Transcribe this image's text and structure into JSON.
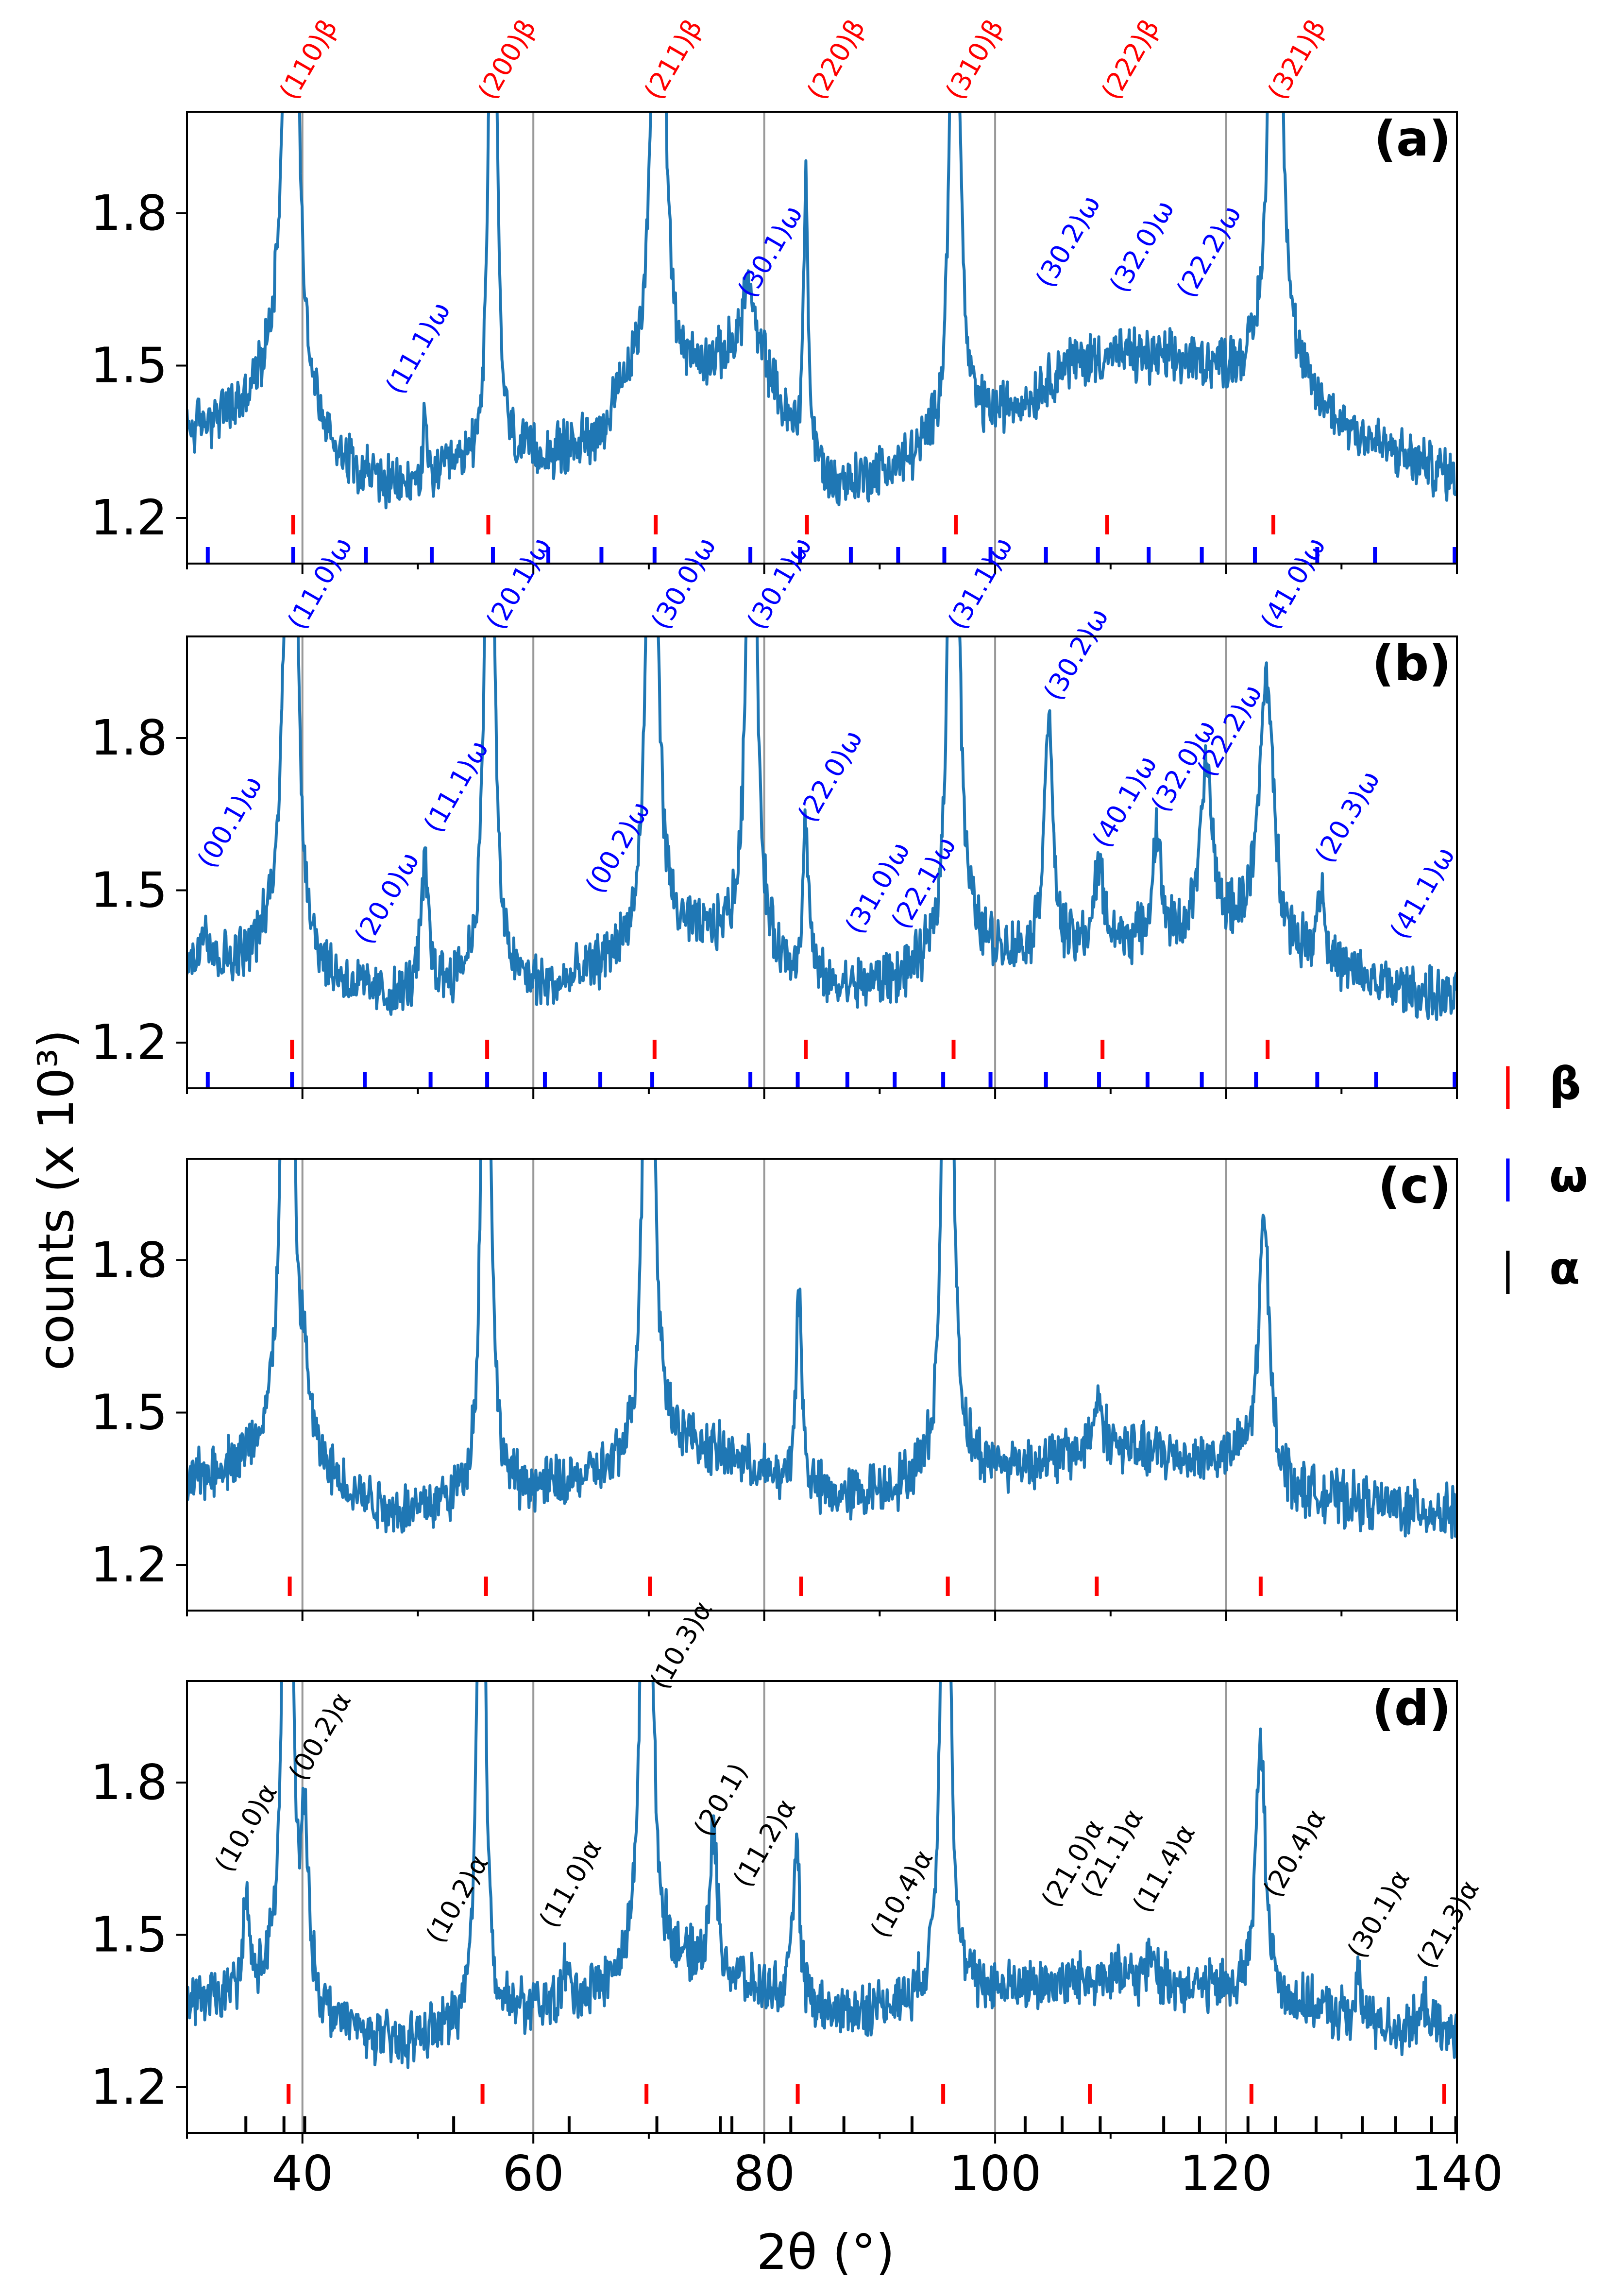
{
  "colors": {
    "trace": "#1f77b4",
    "beta": "#ff0000",
    "omega": "#0000ff",
    "alpha": "#000000",
    "gridline": "#999999"
  },
  "legend": {
    "entries": [
      {
        "symbol": "|",
        "label": "β",
        "phase": "beta"
      },
      {
        "symbol": "|",
        "label": "ω",
        "phase": "omega"
      },
      {
        "symbol": "|",
        "label": "α",
        "phase": "alpha"
      }
    ]
  },
  "chart_data": {
    "type": "line",
    "ylabel": "counts (x 10³)",
    "xlabel": "2θ (°)",
    "xlim": [
      30,
      140
    ],
    "xticks": [
      40,
      60,
      80,
      100,
      120,
      140
    ],
    "ylim": [
      1.11,
      2.0
    ],
    "yticks": [
      1.2,
      1.5,
      1.8
    ],
    "vlines": [
      40,
      60,
      80,
      100,
      120
    ],
    "panels": [
      {
        "label": "(a)",
        "baseline": [
          [
            30,
            1.37
          ],
          [
            35,
            1.41
          ],
          [
            38,
            1.48
          ],
          [
            42,
            1.33
          ],
          [
            48,
            1.25
          ],
          [
            55,
            1.3
          ],
          [
            62,
            1.32
          ],
          [
            66,
            1.36
          ],
          [
            68,
            1.44
          ],
          [
            72,
            1.46
          ],
          [
            76,
            1.5
          ],
          [
            78,
            1.53
          ],
          [
            80,
            1.5
          ],
          [
            82,
            1.38
          ],
          [
            86,
            1.26
          ],
          [
            92,
            1.3
          ],
          [
            95,
            1.34
          ],
          [
            98,
            1.38
          ],
          [
            103,
            1.43
          ],
          [
            106,
            1.5
          ],
          [
            110,
            1.52
          ],
          [
            114,
            1.51
          ],
          [
            118,
            1.5
          ],
          [
            121,
            1.48
          ],
          [
            126,
            1.44
          ],
          [
            130,
            1.38
          ],
          [
            135,
            1.32
          ],
          [
            140,
            1.28
          ]
        ],
        "peaks": [
          [
            39.0,
            1.8,
            0.5
          ],
          [
            56.5,
            1.8,
            0.3
          ],
          [
            70.8,
            1.8,
            0.45
          ],
          [
            96.5,
            1.8,
            0.35
          ],
          [
            124.3,
            1.4,
            0.55
          ],
          [
            83.6,
            0.55,
            0.22
          ],
          [
            78.6,
            0.14,
            0.5
          ],
          [
            50.6,
            0.1,
            0.2
          ]
        ],
        "beta_ticks": [
          39.2,
          56.1,
          70.6,
          83.7,
          96.6,
          109.7,
          124.1
        ],
        "omega_ticks": [
          31.8,
          39.2,
          45.5,
          51.2,
          56.5,
          61.3,
          65.9,
          70.5,
          78.8,
          83.1,
          87.5,
          91.6,
          95.6,
          99.6,
          104.4,
          108.9,
          113.3,
          117.9,
          122.5,
          127.9,
          132.9,
          139.8
        ],
        "alpha_ticks": [],
        "annotations": [
          {
            "text": "(110)β",
            "x": 39.3,
            "y": 2.02,
            "phase": "beta"
          },
          {
            "text": "(200)β",
            "x": 56.5,
            "y": 2.02,
            "phase": "beta"
          },
          {
            "text": "(211)β",
            "x": 70.9,
            "y": 2.02,
            "phase": "beta"
          },
          {
            "text": "(220)β",
            "x": 85.0,
            "y": 2.02,
            "phase": "beta"
          },
          {
            "text": "(310)β",
            "x": 97.0,
            "y": 2.02,
            "phase": "beta"
          },
          {
            "text": "(222)β",
            "x": 110.5,
            "y": 2.02,
            "phase": "beta"
          },
          {
            "text": "(321)β",
            "x": 124.9,
            "y": 2.02,
            "phase": "beta"
          },
          {
            "text": "(11.1)ω",
            "x": 48.5,
            "y": 1.44,
            "phase": "omega"
          },
          {
            "text": "(30.1)ω",
            "x": 79.0,
            "y": 1.63,
            "phase": "omega"
          },
          {
            "text": "(30.2)ω",
            "x": 104.8,
            "y": 1.65,
            "phase": "omega"
          },
          {
            "text": "(32.0)ω",
            "x": 111.2,
            "y": 1.64,
            "phase": "omega"
          },
          {
            "text": "(22.2)ω",
            "x": 117.0,
            "y": 1.63,
            "phase": "omega"
          }
        ]
      },
      {
        "label": "(b)",
        "baseline": [
          [
            30,
            1.34
          ],
          [
            35,
            1.36
          ],
          [
            38,
            1.4
          ],
          [
            42,
            1.32
          ],
          [
            48,
            1.28
          ],
          [
            55,
            1.32
          ],
          [
            62,
            1.3
          ],
          [
            67,
            1.36
          ],
          [
            72,
            1.4
          ],
          [
            78,
            1.4
          ],
          [
            82,
            1.33
          ],
          [
            86,
            1.3
          ],
          [
            92,
            1.32
          ],
          [
            98,
            1.38
          ],
          [
            104,
            1.36
          ],
          [
            110,
            1.39
          ],
          [
            116,
            1.4
          ],
          [
            122,
            1.42
          ],
          [
            126,
            1.37
          ],
          [
            132,
            1.32
          ],
          [
            140,
            1.28
          ]
        ],
        "peaks": [
          [
            31.5,
            0.1,
            0.4
          ],
          [
            39.0,
            1.8,
            0.45
          ],
          [
            50.6,
            0.24,
            0.4
          ],
          [
            56.2,
            1.8,
            0.35
          ],
          [
            70.3,
            1.8,
            0.4
          ],
          [
            78.9,
            1.8,
            0.35
          ],
          [
            83.6,
            0.3,
            0.3
          ],
          [
            96.4,
            1.8,
            0.4
          ],
          [
            104.6,
            0.48,
            0.45
          ],
          [
            109.0,
            0.15,
            0.5
          ],
          [
            114.0,
            0.22,
            0.4
          ],
          [
            118.3,
            0.33,
            0.6
          ],
          [
            123.5,
            0.52,
            0.7
          ],
          [
            128.2,
            0.15,
            0.4
          ]
        ],
        "beta_ticks": [
          39.1,
          56.0,
          70.5,
          83.6,
          96.4,
          109.3,
          123.6
        ],
        "omega_ticks": [
          31.8,
          39.1,
          45.4,
          51.1,
          56.0,
          61.0,
          65.8,
          70.3,
          78.8,
          82.9,
          87.2,
          91.3,
          95.5,
          99.6,
          104.4,
          109.0,
          113.2,
          117.9,
          122.6,
          127.9,
          133.0,
          139.8
        ],
        "alpha_ticks": [],
        "annotations": [
          {
            "text": "(11.0)ω",
            "x": 40.0,
            "y": 2.01,
            "phase": "omega"
          },
          {
            "text": "(20.1)ω",
            "x": 57.2,
            "y": 2.01,
            "phase": "omega"
          },
          {
            "text": "(30.0)ω",
            "x": 71.5,
            "y": 2.01,
            "phase": "omega"
          },
          {
            "text": "(30.1)ω",
            "x": 79.8,
            "y": 2.01,
            "phase": "omega"
          },
          {
            "text": "(31.1)ω",
            "x": 97.2,
            "y": 2.01,
            "phase": "omega"
          },
          {
            "text": "(41.0)ω",
            "x": 124.3,
            "y": 2.01,
            "phase": "omega"
          },
          {
            "text": "(30.2)ω",
            "x": 105.5,
            "y": 1.87,
            "phase": "omega"
          },
          {
            "text": "(00.1)ω",
            "x": 32.2,
            "y": 1.54,
            "phase": "omega"
          },
          {
            "text": "(20.0)ω",
            "x": 45.8,
            "y": 1.39,
            "phase": "omega"
          },
          {
            "text": "(11.1)ω",
            "x": 51.8,
            "y": 1.61,
            "phase": "omega"
          },
          {
            "text": "(00.2)ω",
            "x": 65.8,
            "y": 1.49,
            "phase": "omega"
          },
          {
            "text": "(22.0)ω",
            "x": 84.2,
            "y": 1.63,
            "phase": "omega"
          },
          {
            "text": "(31.0)ω",
            "x": 88.3,
            "y": 1.41,
            "phase": "omega"
          },
          {
            "text": "(22.1)ω",
            "x": 92.3,
            "y": 1.42,
            "phase": "omega"
          },
          {
            "text": "(40.1)ω",
            "x": 109.7,
            "y": 1.58,
            "phase": "omega"
          },
          {
            "text": "(32.0)ω",
            "x": 114.8,
            "y": 1.65,
            "phase": "omega"
          },
          {
            "text": "(22.2)ω",
            "x": 118.8,
            "y": 1.72,
            "phase": "omega"
          },
          {
            "text": "(20.3)ω",
            "x": 129.0,
            "y": 1.55,
            "phase": "omega"
          },
          {
            "text": "(41.1)ω",
            "x": 135.5,
            "y": 1.4,
            "phase": "omega"
          }
        ]
      },
      {
        "label": "(c)",
        "baseline": [
          [
            30,
            1.36
          ],
          [
            35,
            1.4
          ],
          [
            38,
            1.42
          ],
          [
            42,
            1.36
          ],
          [
            48,
            1.3
          ],
          [
            54,
            1.32
          ],
          [
            62,
            1.35
          ],
          [
            68,
            1.38
          ],
          [
            72,
            1.44
          ],
          [
            78,
            1.4
          ],
          [
            82,
            1.35
          ],
          [
            86,
            1.33
          ],
          [
            92,
            1.35
          ],
          [
            98,
            1.38
          ],
          [
            104,
            1.4
          ],
          [
            110,
            1.43
          ],
          [
            116,
            1.41
          ],
          [
            122,
            1.4
          ],
          [
            126,
            1.34
          ],
          [
            132,
            1.32
          ],
          [
            140,
            1.3
          ]
        ],
        "peaks": [
          [
            38.7,
            1.8,
            0.45
          ],
          [
            40.2,
            0.12,
            0.5
          ],
          [
            55.9,
            1.8,
            0.35
          ],
          [
            70.0,
            1.8,
            0.4
          ],
          [
            83.0,
            0.4,
            0.3
          ],
          [
            95.9,
            1.8,
            0.4
          ],
          [
            108.9,
            0.1,
            0.5
          ],
          [
            123.3,
            0.5,
            0.55
          ]
        ],
        "beta_ticks": [
          38.9,
          55.9,
          70.1,
          83.2,
          95.9,
          108.8,
          123.0
        ],
        "omega_ticks": [],
        "alpha_ticks": [],
        "annotations": []
      },
      {
        "label": "(d)",
        "baseline": [
          [
            30,
            1.36
          ],
          [
            35,
            1.38
          ],
          [
            38,
            1.4
          ],
          [
            42,
            1.33
          ],
          [
            48,
            1.28
          ],
          [
            54,
            1.32
          ],
          [
            62,
            1.36
          ],
          [
            68,
            1.4
          ],
          [
            72,
            1.44
          ],
          [
            78,
            1.4
          ],
          [
            82,
            1.37
          ],
          [
            86,
            1.34
          ],
          [
            92,
            1.36
          ],
          [
            98,
            1.38
          ],
          [
            104,
            1.4
          ],
          [
            110,
            1.42
          ],
          [
            116,
            1.4
          ],
          [
            122,
            1.38
          ],
          [
            126,
            1.36
          ],
          [
            132,
            1.33
          ],
          [
            140,
            1.3
          ]
        ],
        "peaks": [
          [
            35.1,
            0.18,
            0.3
          ],
          [
            38.7,
            1.8,
            0.35
          ],
          [
            40.2,
            0.3,
            0.4
          ],
          [
            55.5,
            1.8,
            0.3
          ],
          [
            62.8,
            0.06,
            0.3
          ],
          [
            69.8,
            1.8,
            0.4
          ],
          [
            75.6,
            0.28,
            0.4
          ],
          [
            82.8,
            0.34,
            0.3
          ],
          [
            95.7,
            1.8,
            0.35
          ],
          [
            113.6,
            0.06,
            0.3
          ],
          [
            123.0,
            0.5,
            0.5
          ],
          [
            131.5,
            0.07,
            0.3
          ],
          [
            137.3,
            0.06,
            0.3
          ]
        ],
        "beta_ticks": [
          38.8,
          55.6,
          69.8,
          82.9,
          95.5,
          108.2,
          122.2,
          138.9
        ],
        "omega_ticks": [],
        "alpha_ticks": [
          35.1,
          38.4,
          40.2,
          53.1,
          63.1,
          70.7,
          76.2,
          77.2,
          82.3,
          86.9,
          92.8,
          102.6,
          105.8,
          109.1,
          114.6,
          117.7,
          121.9,
          124.3,
          127.8,
          131.8,
          134.7,
          137.8,
          139.9
        ],
        "annotations": [
          {
            "text": "(10.0)α",
            "x": 33.7,
            "y": 1.62,
            "phase": "alpha"
          },
          {
            "text": "(00.2)α",
            "x": 40.1,
            "y": 1.8,
            "phase": "alpha"
          },
          {
            "text": "(10.2)α",
            "x": 52.0,
            "y": 1.48,
            "phase": "alpha"
          },
          {
            "text": "(11.0)α",
            "x": 61.8,
            "y": 1.51,
            "phase": "alpha"
          },
          {
            "text": "(10.3)α",
            "x": 71.4,
            "y": 1.98,
            "phase": "alpha"
          },
          {
            "text": "(20.1)",
            "x": 75.2,
            "y": 1.69,
            "phase": "alpha"
          },
          {
            "text": "(11.2)α",
            "x": 78.6,
            "y": 1.59,
            "phase": "alpha"
          },
          {
            "text": "(10.4)α",
            "x": 90.5,
            "y": 1.49,
            "phase": "alpha"
          },
          {
            "text": "(21.0)α",
            "x": 105.3,
            "y": 1.55,
            "phase": "alpha"
          },
          {
            "text": "(21.1)α",
            "x": 108.7,
            "y": 1.57,
            "phase": "alpha"
          },
          {
            "text": "(11.4)α",
            "x": 113.2,
            "y": 1.54,
            "phase": "alpha"
          },
          {
            "text": "(20.4)α",
            "x": 124.5,
            "y": 1.57,
            "phase": "alpha"
          },
          {
            "text": "(30.1)α",
            "x": 131.8,
            "y": 1.45,
            "phase": "alpha"
          },
          {
            "text": "(21.3)α",
            "x": 137.8,
            "y": 1.43,
            "phase": "alpha"
          }
        ]
      }
    ]
  }
}
